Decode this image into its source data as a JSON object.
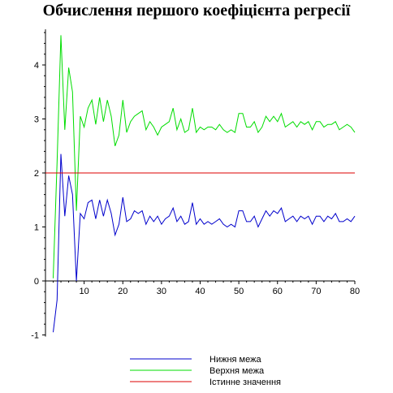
{
  "chart_data": {
    "type": "line",
    "title": "Обчислення першого коефіцієнта регресії",
    "xlabel": "",
    "ylabel": "",
    "xlim": [
      0,
      80
    ],
    "ylim": [
      -1,
      4.6
    ],
    "x_ticks": [
      10,
      20,
      30,
      40,
      50,
      60,
      70,
      80
    ],
    "y_ticks": [
      -1,
      0,
      1,
      2,
      3,
      4
    ],
    "grid": false,
    "legend_position": "bottom-center",
    "series": [
      {
        "name": "Нижня межа",
        "color": "#0000cc",
        "x": [
          2,
          3,
          4,
          5,
          6,
          7,
          8,
          9,
          10,
          11,
          12,
          13,
          14,
          15,
          16,
          17,
          18,
          19,
          20,
          21,
          22,
          23,
          24,
          25,
          26,
          27,
          28,
          29,
          30,
          31,
          32,
          33,
          34,
          35,
          36,
          37,
          38,
          39,
          40,
          41,
          42,
          43,
          44,
          45,
          46,
          47,
          48,
          49,
          50,
          51,
          52,
          53,
          54,
          55,
          56,
          57,
          58,
          59,
          60,
          61,
          62,
          63,
          64,
          65,
          66,
          67,
          68,
          69,
          70,
          71,
          72,
          73,
          74,
          75,
          76,
          77,
          78,
          79,
          80
        ],
        "y": [
          -0.95,
          -0.35,
          2.35,
          1.2,
          1.95,
          1.6,
          0.0,
          1.25,
          1.15,
          1.45,
          1.5,
          1.15,
          1.5,
          1.2,
          1.5,
          1.25,
          0.85,
          1.05,
          1.55,
          1.1,
          1.15,
          1.3,
          1.25,
          1.3,
          1.05,
          1.2,
          1.1,
          1.2,
          1.05,
          1.15,
          1.2,
          1.35,
          1.1,
          1.2,
          1.05,
          1.1,
          1.45,
          1.05,
          1.15,
          1.05,
          1.1,
          1.05,
          1.1,
          1.15,
          1.05,
          1.0,
          1.05,
          1.0,
          1.3,
          1.3,
          1.1,
          1.1,
          1.2,
          1.0,
          1.15,
          1.3,
          1.2,
          1.3,
          1.25,
          1.35,
          1.1,
          1.15,
          1.2,
          1.1,
          1.2,
          1.15,
          1.2,
          1.05,
          1.2,
          1.2,
          1.1,
          1.2,
          1.15,
          1.25,
          1.1,
          1.1,
          1.15,
          1.1,
          1.2
        ]
      },
      {
        "name": "Верхня межа",
        "color": "#00dd00",
        "x": [
          2,
          3,
          4,
          5,
          6,
          7,
          8,
          9,
          10,
          11,
          12,
          13,
          14,
          15,
          16,
          17,
          18,
          19,
          20,
          21,
          22,
          23,
          24,
          25,
          26,
          27,
          28,
          29,
          30,
          31,
          32,
          33,
          34,
          35,
          36,
          37,
          38,
          39,
          40,
          41,
          42,
          43,
          44,
          45,
          46,
          47,
          48,
          49,
          50,
          51,
          52,
          53,
          54,
          55,
          56,
          57,
          58,
          59,
          60,
          61,
          62,
          63,
          64,
          65,
          66,
          67,
          68,
          69,
          70,
          71,
          72,
          73,
          74,
          75,
          76,
          77,
          78,
          79,
          80
        ],
        "y": [
          0.05,
          2.2,
          4.55,
          2.8,
          3.95,
          3.5,
          1.3,
          3.05,
          2.85,
          3.2,
          3.35,
          2.9,
          3.4,
          2.95,
          3.35,
          3.05,
          2.5,
          2.7,
          3.35,
          2.75,
          2.95,
          3.05,
          3.1,
          3.15,
          2.8,
          2.95,
          2.85,
          2.7,
          2.85,
          2.9,
          2.95,
          3.2,
          2.8,
          3.0,
          2.75,
          2.8,
          3.2,
          2.75,
          2.85,
          2.8,
          2.85,
          2.85,
          2.8,
          2.9,
          2.8,
          2.75,
          2.8,
          2.75,
          3.1,
          3.1,
          2.85,
          2.85,
          2.95,
          2.75,
          2.85,
          3.05,
          2.95,
          3.05,
          2.95,
          3.1,
          2.85,
          2.9,
          2.95,
          2.85,
          2.95,
          2.9,
          2.95,
          2.8,
          2.95,
          2.95,
          2.85,
          2.9,
          2.9,
          2.95,
          2.8,
          2.85,
          2.9,
          2.85,
          2.75
        ]
      },
      {
        "name": "Істинне значення",
        "color": "#dd0000",
        "x": [
          0,
          80
        ],
        "y": [
          2,
          2
        ]
      }
    ]
  }
}
